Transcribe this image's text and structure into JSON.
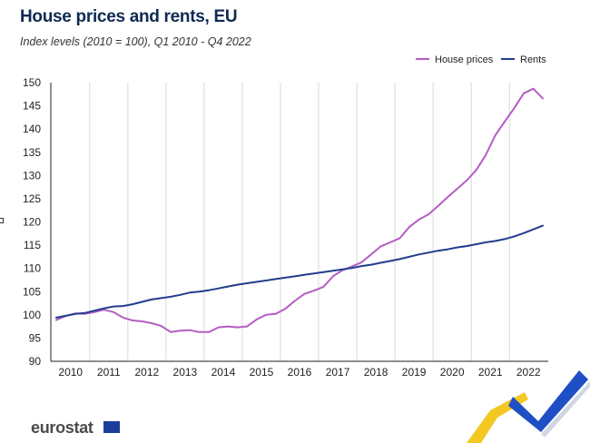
{
  "header": {
    "title": "House prices and rents, EU",
    "subtitle": "Index levels (2010 = 100),  Q1 2010 - Q4 2022"
  },
  "logo": {
    "text": "eurostat",
    "flag_color": "#1a3d99"
  },
  "chart_data": {
    "type": "line",
    "title": "House prices and rents, EU",
    "subtitle": "Index levels (2010 = 100),  Q1 2010 - Q4 2022",
    "xlabel": "",
    "ylabel": "",
    "ylim": [
      90,
      150
    ],
    "yticks": [
      90,
      95,
      100,
      105,
      110,
      115,
      120,
      125,
      130,
      135,
      140,
      145,
      150
    ],
    "xticks": [
      "2010",
      "2011",
      "2012",
      "2013",
      "2014",
      "2015",
      "2016",
      "2017",
      "2018",
      "2019",
      "2020",
      "2021",
      "2022"
    ],
    "x": [
      "2010Q1",
      "2010Q2",
      "2010Q3",
      "2010Q4",
      "2011Q1",
      "2011Q2",
      "2011Q3",
      "2011Q4",
      "2012Q1",
      "2012Q2",
      "2012Q3",
      "2012Q4",
      "2013Q1",
      "2013Q2",
      "2013Q3",
      "2013Q4",
      "2014Q1",
      "2014Q2",
      "2014Q3",
      "2014Q4",
      "2015Q1",
      "2015Q2",
      "2015Q3",
      "2015Q4",
      "2016Q1",
      "2016Q2",
      "2016Q3",
      "2016Q4",
      "2017Q1",
      "2017Q2",
      "2017Q3",
      "2017Q4",
      "2018Q1",
      "2018Q2",
      "2018Q3",
      "2018Q4",
      "2019Q1",
      "2019Q2",
      "2019Q3",
      "2019Q4",
      "2020Q1",
      "2020Q2",
      "2020Q3",
      "2020Q4",
      "2021Q1",
      "2021Q2",
      "2021Q3",
      "2021Q4",
      "2022Q1",
      "2022Q2",
      "2022Q3",
      "2022Q4"
    ],
    "grid": {
      "vertical": true,
      "horizontal": false
    },
    "legend": "top-right",
    "series": [
      {
        "name": "House prices",
        "color": "#b65cc4",
        "values": [
          98.9,
          99.8,
          100.3,
          100.2,
          100.6,
          101.1,
          100.6,
          99.4,
          98.8,
          98.6,
          98.2,
          97.6,
          96.3,
          96.6,
          96.7,
          96.3,
          96.3,
          97.3,
          97.5,
          97.3,
          97.5,
          99.0,
          100.0,
          100.2,
          101.3,
          103.0,
          104.5,
          105.2,
          106.0,
          108.3,
          109.6,
          110.4,
          111.3,
          113.0,
          114.7,
          115.6,
          116.5,
          118.9,
          120.5,
          121.6,
          123.4,
          125.3,
          127.1,
          128.9,
          131.1,
          134.3,
          138.6,
          141.6,
          144.5,
          147.7,
          148.7,
          146.6
        ]
      },
      {
        "name": "Rents",
        "color": "#223d8c",
        "values": [
          99.4,
          99.8,
          100.2,
          100.4,
          100.9,
          101.4,
          101.8,
          101.9,
          102.3,
          102.8,
          103.3,
          103.6,
          103.9,
          104.3,
          104.8,
          105.0,
          105.3,
          105.7,
          106.1,
          106.5,
          106.8,
          107.1,
          107.4,
          107.7,
          108.0,
          108.3,
          108.6,
          108.9,
          109.2,
          109.5,
          109.8,
          110.1,
          110.5,
          110.8,
          111.2,
          111.6,
          112.0,
          112.5,
          113.0,
          113.4,
          113.8,
          114.1,
          114.5,
          114.8,
          115.2,
          115.6,
          115.9,
          116.3,
          116.9,
          117.6,
          118.4,
          119.2
        ]
      }
    ]
  }
}
